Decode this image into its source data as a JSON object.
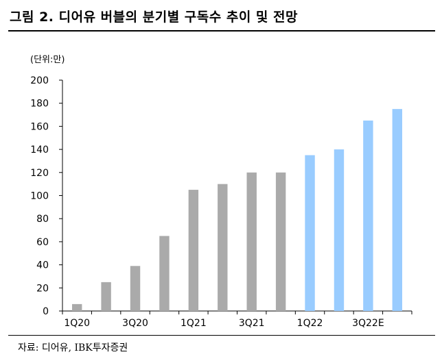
{
  "figure": {
    "title": "그림 2. 디어유 버블의 분기별 구독수 추이 및 전망",
    "unit": "(단위:만)",
    "source": "자료: 디어유, IBK투자증권"
  },
  "chart_data": {
    "type": "bar",
    "categories": [
      "1Q20",
      "2Q20",
      "3Q20",
      "4Q20",
      "1Q21",
      "2Q21",
      "3Q21",
      "4Q21",
      "1Q22",
      "2Q22",
      "3Q22E",
      "4Q22E"
    ],
    "x_tick_labels": [
      "1Q20",
      "3Q20",
      "1Q21",
      "3Q21",
      "1Q22",
      "3Q22E"
    ],
    "values": [
      6,
      25,
      39,
      65,
      105,
      110,
      120,
      120,
      135,
      140,
      165,
      175
    ],
    "ylim": [
      0,
      200
    ],
    "y_ticks": [
      0,
      20,
      40,
      60,
      80,
      100,
      120,
      140,
      160,
      180,
      200
    ],
    "grid": false,
    "colors": {
      "actual": "#aaaaaa",
      "forecast": "#99ccff"
    },
    "forecast_from_index": 8
  }
}
